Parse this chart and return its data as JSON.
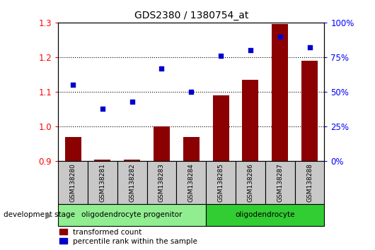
{
  "title": "GDS2380 / 1380754_at",
  "samples": [
    "GSM138280",
    "GSM138281",
    "GSM138282",
    "GSM138283",
    "GSM138284",
    "GSM138285",
    "GSM138286",
    "GSM138287",
    "GSM138288"
  ],
  "red_values": [
    0.97,
    0.905,
    0.905,
    1.0,
    0.97,
    1.09,
    1.135,
    1.295,
    1.19
  ],
  "blue_values": [
    55,
    38,
    43,
    67,
    50,
    76,
    80,
    90,
    82
  ],
  "ylim_left": [
    0.9,
    1.3
  ],
  "ylim_right": [
    0,
    100
  ],
  "yticks_left": [
    0.9,
    1.0,
    1.1,
    1.2,
    1.3
  ],
  "yticks_right": [
    0,
    25,
    50,
    75,
    100
  ],
  "ytick_labels_right": [
    "0%",
    "25%",
    "50%",
    "75%",
    "100%"
  ],
  "groups": [
    {
      "label": "oligodendrocyte progenitor",
      "start": 0,
      "end": 5,
      "color": "#90EE90"
    },
    {
      "label": "oligodendrocyte",
      "start": 5,
      "end": 9,
      "color": "#32CD32"
    }
  ],
  "bar_color": "#8B0000",
  "scatter_color": "#0000CD",
  "bar_bottom": 0.9,
  "legend_items": [
    {
      "label": "transformed count",
      "color": "#8B0000"
    },
    {
      "label": "percentile rank within the sample",
      "color": "#0000CD"
    }
  ],
  "sample_bg_color": "#C8C8C8",
  "development_stage_label": "development stage"
}
